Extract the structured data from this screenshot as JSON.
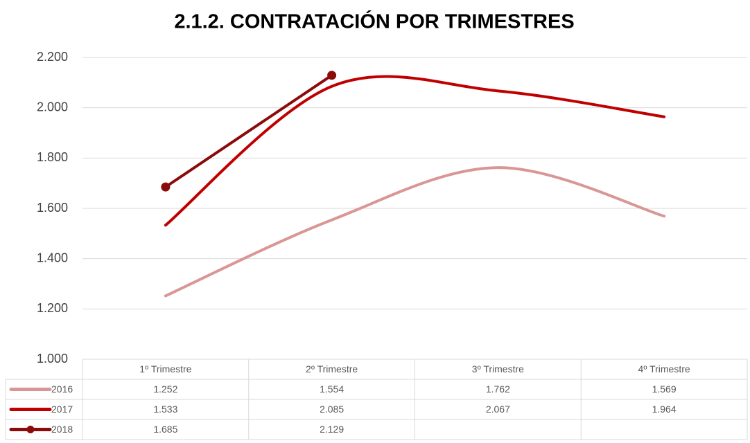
{
  "chart_data": {
    "type": "line",
    "title": "2.1.2. CONTRATACIÓN POR TRIMESTRES",
    "categories": [
      "1º Trimestre",
      "2º Trimestre",
      "3º Trimestre",
      "4º Trimestre"
    ],
    "series": [
      {
        "name": "2016",
        "color": "#d99694",
        "values": [
          1252,
          1554,
          1762,
          1569
        ],
        "value_labels": [
          "1.252",
          "1.554",
          "1.762",
          "1.569"
        ],
        "markers": false
      },
      {
        "name": "2017",
        "color": "#c00000",
        "values": [
          1533,
          2085,
          2067,
          1964
        ],
        "value_labels": [
          "1.533",
          "2.085",
          "2.067",
          "1.964"
        ],
        "markers": false
      },
      {
        "name": "2018",
        "color": "#8b0a0a",
        "values": [
          1685,
          2129,
          null,
          null
        ],
        "value_labels": [
          "1.685",
          "2.129",
          null,
          null
        ],
        "markers": true
      }
    ],
    "ylim": [
      1000,
      2200
    ],
    "yticks": [
      {
        "value": 1000,
        "label": "1.000"
      },
      {
        "value": 1200,
        "label": "1.200"
      },
      {
        "value": 1400,
        "label": "1.400"
      },
      {
        "value": 1600,
        "label": "1.600"
      },
      {
        "value": 1800,
        "label": "1.800"
      },
      {
        "value": 2000,
        "label": "2.000"
      },
      {
        "value": 2200,
        "label": "2.200"
      }
    ],
    "grid": true,
    "smooth": true,
    "data_table": true
  }
}
